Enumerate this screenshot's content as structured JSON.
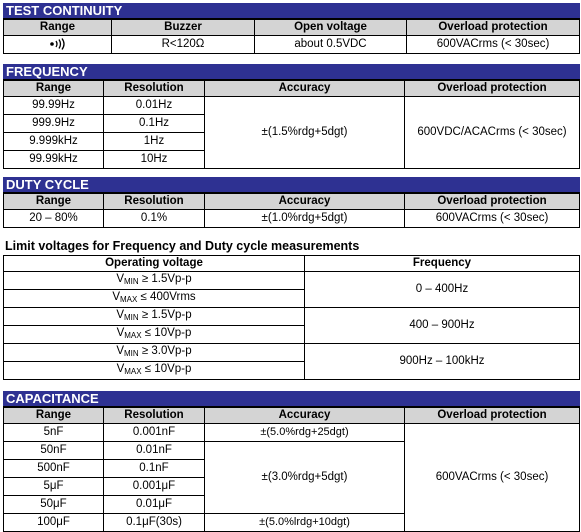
{
  "test_continuity": {
    "title": "TEST CONTINUITY",
    "headers": [
      "Range",
      "Buzzer",
      "Open voltage",
      "Overload protection"
    ],
    "row": {
      "range_icon": "buzzer-sound-icon",
      "buzzer": "R<120Ω",
      "open_voltage": "about 0.5VDC",
      "overload": "600VACrms (< 30sec)"
    }
  },
  "frequency": {
    "title": "FREQUENCY",
    "headers": [
      "Range",
      "Resolution",
      "Accuracy",
      "Overload protection"
    ],
    "rows": [
      {
        "range": "99.99Hz",
        "resolution": "0.01Hz"
      },
      {
        "range": "999.9Hz",
        "resolution": "0.1Hz"
      },
      {
        "range": "9.999kHz",
        "resolution": "1Hz"
      },
      {
        "range": "99.99kHz",
        "resolution": "10Hz"
      }
    ],
    "accuracy": "±(1.5%rdg+5dgt)",
    "overload": "600VDC/ACACrms (< 30sec)"
  },
  "duty_cycle": {
    "title": "DUTY CYCLE",
    "headers": [
      "Range",
      "Resolution",
      "Accuracy",
      "Overload protection"
    ],
    "row": {
      "range": "20 – 80%",
      "resolution": "0.1%",
      "accuracy": "±(1.0%rdg+5dgt)",
      "overload": "600VACrms (< 30sec)"
    }
  },
  "limit_voltages": {
    "title": "Limit voltages for Frequency and Duty cycle measurements",
    "headers": [
      "Operating voltage",
      "Frequency"
    ],
    "groups": [
      {
        "vmin_label": "V",
        "vmin_sub": "MIN",
        "vmin_value": " ≥ 1.5Vp-p",
        "vmax_label": "V",
        "vmax_sub": "MAX",
        "vmax_value": " ≤ 400Vrms",
        "frequency": "0 – 400Hz"
      },
      {
        "vmin_label": "V",
        "vmin_sub": "MIN",
        "vmin_value": " ≥ 1.5Vp-p",
        "vmax_label": "V",
        "vmax_sub": "MAX",
        "vmax_value": " ≤ 10Vp-p",
        "frequency": "400 – 900Hz"
      },
      {
        "vmin_label": "V",
        "vmin_sub": "MIN",
        "vmin_value": " ≥ 3.0Vp-p",
        "vmax_label": "V",
        "vmax_sub": "MAX",
        "vmax_value": " ≤ 10Vp-p",
        "frequency": "900Hz – 100kHz"
      }
    ]
  },
  "capacitance": {
    "title": "CAPACITANCE",
    "headers": [
      "Range",
      "Resolution",
      "Accuracy",
      "Overload protection"
    ],
    "rows": [
      {
        "range": "5nF",
        "resolution": "0.001nF"
      },
      {
        "range": "50nF",
        "resolution": "0.01nF"
      },
      {
        "range": "500nF",
        "resolution": "0.1nF"
      },
      {
        "range": "5μF",
        "resolution": "0.001μF"
      },
      {
        "range": "50μF",
        "resolution": "0.01μF"
      },
      {
        "range": "100μF",
        "resolution": "0.1μF(30s)"
      }
    ],
    "accuracy_first": "±(5.0%rdg+25dgt)",
    "accuracy_mid": "±(3.0%rdg+5dgt)",
    "accuracy_last": "±(5.0%lrdg+10dgt)",
    "overload": "600VACrms (< 30sec)"
  },
  "colors": {
    "section_bar": "#2e3192",
    "header_fill": "#d4d4d4"
  }
}
